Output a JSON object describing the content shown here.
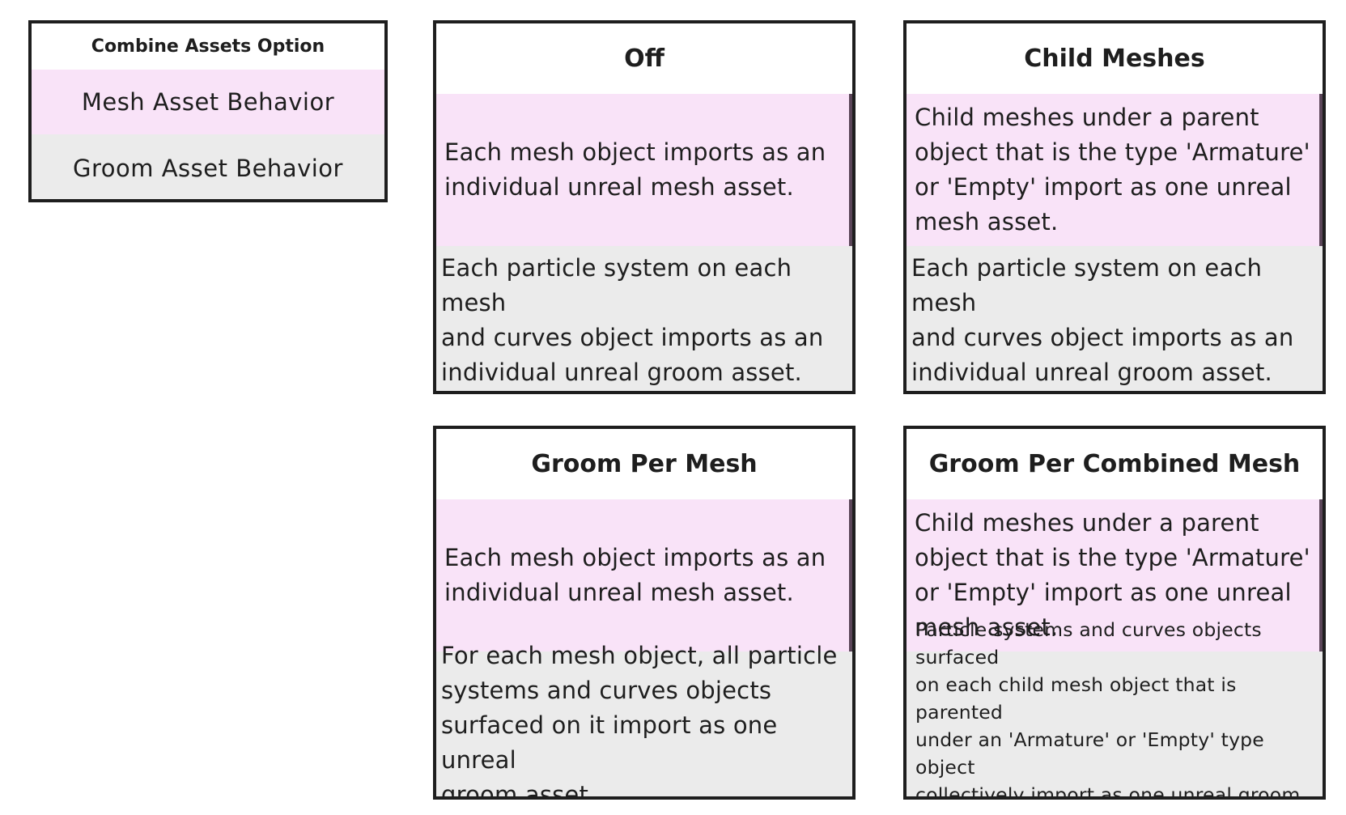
{
  "legend": {
    "title": "Combine Assets Option",
    "mesh_label": "Mesh Asset Behavior",
    "groom_label": "Groom Asset Behavior"
  },
  "colors": {
    "mesh_row": "#f9e3f8",
    "groom_row": "#ebebeb",
    "border": "#1e1e1e"
  },
  "options": [
    {
      "title": "Off",
      "mesh": "Each mesh object imports as an\nindividual unreal mesh asset.",
      "groom": "Each particle system on each mesh\nand curves object imports as an\nindividual unreal groom asset."
    },
    {
      "title": "Child Meshes",
      "mesh": "Child meshes under a parent\nobject that is the type 'Armature'\nor 'Empty' import as one unreal\nmesh asset.",
      "groom": "Each particle system on each mesh\nand curves object imports as an\nindividual unreal groom asset."
    },
    {
      "title": "Groom Per Mesh",
      "mesh": "Each mesh object imports as an\nindividual unreal mesh asset.",
      "groom": "For each mesh object, all particle\nsystems and curves objects\nsurfaced on it import as one unreal\ngroom asset."
    },
    {
      "title": "Groom Per Combined Mesh",
      "mesh": "Child meshes under a parent\nobject that is the type 'Armature'\nor 'Empty' import as one unreal\nmesh asset.",
      "groom": "Particle systems and curves objects surfaced\non each child mesh object that is parented\nunder an 'Armature' or 'Empty' type object\ncollectively import as one unreal groom\nasset for each combined mesh."
    }
  ]
}
